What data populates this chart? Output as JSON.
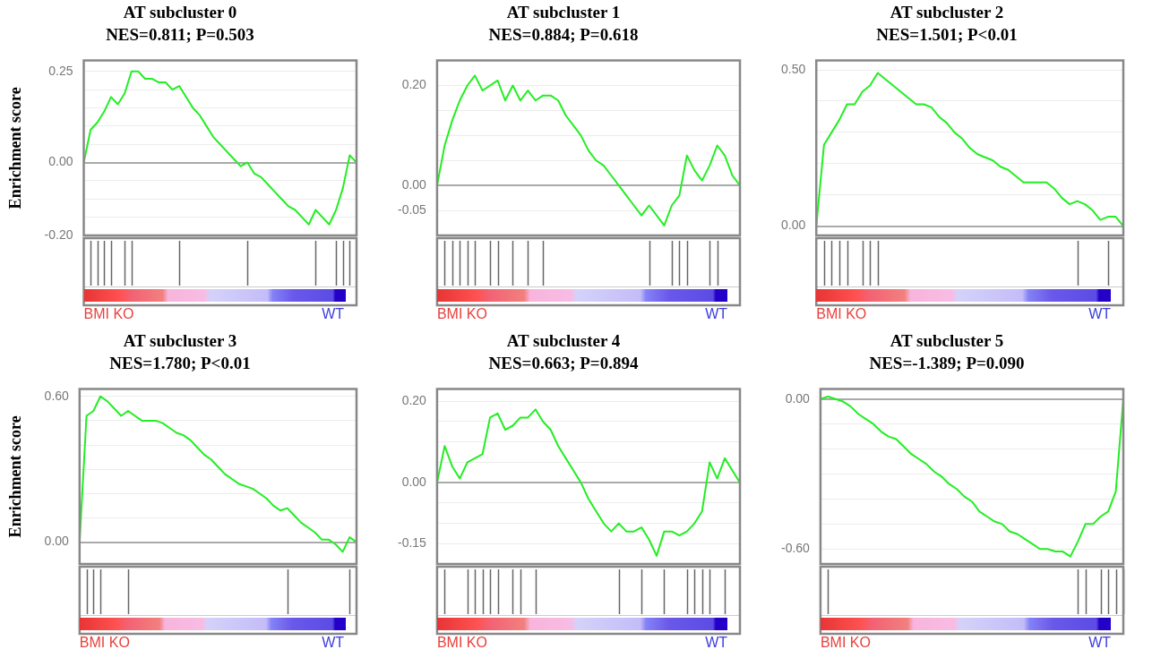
{
  "chart_data": [
    {
      "type": "line",
      "title": "AT subcluster 0",
      "subtitle": "NES=0.811; P=0.503",
      "ylabel": "Enrichment score",
      "grid": "y",
      "tick_labels": "y",
      "annotations": [
        "BMI KO",
        "WT"
      ],
      "ylim": [
        -0.2,
        0.28
      ],
      "yticks": [
        {
          "value": -0.2,
          "label": "-0.20"
        },
        {
          "value": -0.15,
          "label": null
        },
        {
          "value": -0.1,
          "label": null
        },
        {
          "value": -0.05,
          "label": null
        },
        {
          "value": 0,
          "label": "0.00"
        },
        {
          "value": 0.05,
          "label": null
        },
        {
          "value": 0.1,
          "label": null
        },
        {
          "value": 0.15,
          "label": null
        },
        {
          "value": 0.2,
          "label": null
        },
        {
          "value": 0.25,
          "label": "0.25"
        }
      ],
      "categories": [
        null,
        null,
        null,
        null,
        null,
        null,
        null,
        null,
        null,
        null,
        null,
        null,
        null,
        null,
        null,
        null,
        null,
        null,
        null,
        null,
        null,
        null,
        null,
        null,
        null,
        null,
        null,
        null,
        null,
        null,
        null,
        null,
        null,
        null,
        null,
        null,
        null,
        null,
        null,
        null,
        null
      ],
      "series": [
        {
          "color": "#22ee22",
          "values": [
            0,
            0.09,
            0.11,
            0.14,
            0.18,
            0.16,
            0.19,
            0.25,
            0.25,
            0.23,
            0.23,
            0.22,
            0.22,
            0.2,
            0.21,
            0.18,
            0.15,
            0.13,
            0.1,
            0.07,
            0.05,
            0.03,
            0.01,
            -0.01,
            0,
            -0.03,
            -0.04,
            -0.06,
            -0.08,
            -0.1,
            -0.12,
            -0.13,
            -0.15,
            -0.17,
            -0.13,
            -0.15,
            -0.17,
            -0.13,
            -0.07,
            0.02,
            0
          ]
        }
      ]
    },
    {
      "type": "line",
      "title": "AT subcluster 1",
      "subtitle": "NES=0.884; P=0.618",
      "grid": "y",
      "tick_labels": "y",
      "annotations": [
        "BMI KO",
        "WT"
      ],
      "ylim": [
        -0.1,
        0.25
      ],
      "yticks": [
        {
          "value": -0.1,
          "label": null
        },
        {
          "value": -0.05,
          "label": "-0.05"
        },
        {
          "value": 0,
          "label": "0.00"
        },
        {
          "value": 0.05,
          "label": null
        },
        {
          "value": 0.1,
          "label": null
        },
        {
          "value": 0.15,
          "label": null
        },
        {
          "value": 0.2,
          "label": "0.20"
        }
      ],
      "categories": [
        null,
        null,
        null,
        null,
        null,
        null,
        null,
        null,
        null,
        null,
        null,
        null,
        null,
        null,
        null,
        null,
        null,
        null,
        null,
        null,
        null,
        null,
        null,
        null,
        null,
        null,
        null,
        null,
        null,
        null,
        null,
        null,
        null,
        null,
        null,
        null,
        null,
        null,
        null,
        null,
        null
      ],
      "series": [
        {
          "color": "#22ee22",
          "values": [
            0,
            0.08,
            0.13,
            0.17,
            0.2,
            0.22,
            0.19,
            0.2,
            0.21,
            0.17,
            0.2,
            0.17,
            0.19,
            0.17,
            0.18,
            0.18,
            0.17,
            0.14,
            0.12,
            0.1,
            0.07,
            0.05,
            0.04,
            0.02,
            0,
            -0.02,
            -0.04,
            -0.06,
            -0.04,
            -0.06,
            -0.08,
            -0.04,
            -0.02,
            0.06,
            0.03,
            0.01,
            0.04,
            0.08,
            0.06,
            0.02,
            0
          ]
        }
      ]
    },
    {
      "type": "line",
      "title": "AT subcluster 2",
      "subtitle": "NES=1.501; P<0.01",
      "grid": "y",
      "tick_labels": "y",
      "annotations": [
        "BMI KO",
        "WT"
      ],
      "ylim": [
        -0.03,
        0.53
      ],
      "yticks": [
        {
          "value": 0,
          "label": "0.00"
        },
        {
          "value": 0.1,
          "label": null
        },
        {
          "value": 0.2,
          "label": null
        },
        {
          "value": 0.3,
          "label": null
        },
        {
          "value": 0.4,
          "label": null
        },
        {
          "value": 0.5,
          "label": "0.50"
        }
      ],
      "categories": [
        null,
        null,
        null,
        null,
        null,
        null,
        null,
        null,
        null,
        null,
        null,
        null,
        null,
        null,
        null,
        null,
        null,
        null,
        null,
        null,
        null,
        null,
        null,
        null,
        null,
        null,
        null,
        null,
        null,
        null,
        null,
        null,
        null,
        null,
        null,
        null,
        null,
        null,
        null,
        null,
        null
      ],
      "series": [
        {
          "color": "#22ee22",
          "values": [
            0,
            0.26,
            0.3,
            0.34,
            0.39,
            0.39,
            0.43,
            0.45,
            0.49,
            0.47,
            0.45,
            0.43,
            0.41,
            0.39,
            0.39,
            0.38,
            0.35,
            0.33,
            0.3,
            0.28,
            0.25,
            0.23,
            0.22,
            0.21,
            0.19,
            0.18,
            0.16,
            0.14,
            0.14,
            0.14,
            0.14,
            0.12,
            0.09,
            0.07,
            0.08,
            0.07,
            0.05,
            0.02,
            0.03,
            0.03,
            0
          ]
        }
      ]
    },
    {
      "type": "line",
      "title": "AT subcluster 3",
      "subtitle": "NES=1.780; P<0.01",
      "ylabel": "Enrichment score",
      "grid": "y",
      "tick_labels": "y",
      "annotations": [
        "BMI KO",
        "WT"
      ],
      "ylim": [
        -0.09,
        0.63
      ],
      "yticks": [
        {
          "value": 0,
          "label": "0.00"
        },
        {
          "value": 0.1,
          "label": null
        },
        {
          "value": 0.2,
          "label": null
        },
        {
          "value": 0.3,
          "label": null
        },
        {
          "value": 0.4,
          "label": null
        },
        {
          "value": 0.5,
          "label": null
        },
        {
          "value": 0.6,
          "label": "0.60"
        }
      ],
      "categories": [
        null,
        null,
        null,
        null,
        null,
        null,
        null,
        null,
        null,
        null,
        null,
        null,
        null,
        null,
        null,
        null,
        null,
        null,
        null,
        null,
        null,
        null,
        null,
        null,
        null,
        null,
        null,
        null,
        null,
        null,
        null,
        null,
        null,
        null,
        null,
        null,
        null,
        null,
        null,
        null,
        null
      ],
      "series": [
        {
          "color": "#22ee22",
          "values": [
            0,
            0.52,
            0.54,
            0.6,
            0.58,
            0.55,
            0.52,
            0.54,
            0.52,
            0.5,
            0.5,
            0.5,
            0.49,
            0.47,
            0.45,
            0.44,
            0.42,
            0.39,
            0.36,
            0.34,
            0.31,
            0.28,
            0.26,
            0.24,
            0.23,
            0.22,
            0.2,
            0.18,
            0.15,
            0.13,
            0.14,
            0.11,
            0.08,
            0.06,
            0.04,
            0.01,
            0.01,
            -0.01,
            -0.04,
            0.02,
            0
          ]
        }
      ]
    },
    {
      "type": "line",
      "title": "AT subcluster 4",
      "subtitle": "NES=0.663; P=0.894",
      "grid": "y",
      "tick_labels": "y",
      "annotations": [
        "BMI KO",
        "WT"
      ],
      "ylim": [
        -0.2,
        0.23
      ],
      "yticks": [
        {
          "value": -0.15,
          "label": "-0.15"
        },
        {
          "value": -0.1,
          "label": null
        },
        {
          "value": -0.05,
          "label": null
        },
        {
          "value": 0,
          "label": "0.00"
        },
        {
          "value": 0.05,
          "label": null
        },
        {
          "value": 0.1,
          "label": null
        },
        {
          "value": 0.15,
          "label": null
        },
        {
          "value": 0.2,
          "label": "0.20"
        }
      ],
      "categories": [
        null,
        null,
        null,
        null,
        null,
        null,
        null,
        null,
        null,
        null,
        null,
        null,
        null,
        null,
        null,
        null,
        null,
        null,
        null,
        null,
        null,
        null,
        null,
        null,
        null,
        null,
        null,
        null,
        null,
        null,
        null,
        null,
        null,
        null,
        null,
        null,
        null,
        null,
        null,
        null,
        null
      ],
      "series": [
        {
          "color": "#22ee22",
          "values": [
            0,
            0.09,
            0.04,
            0.01,
            0.05,
            0.06,
            0.07,
            0.16,
            0.17,
            0.13,
            0.14,
            0.16,
            0.16,
            0.18,
            0.15,
            0.13,
            0.09,
            0.06,
            0.03,
            0,
            -0.04,
            -0.07,
            -0.1,
            -0.12,
            -0.1,
            -0.12,
            -0.12,
            -0.11,
            -0.14,
            -0.18,
            -0.12,
            -0.12,
            -0.13,
            -0.12,
            -0.1,
            -0.07,
            0.05,
            0.01,
            0.06,
            0.03,
            0
          ]
        }
      ]
    },
    {
      "type": "line",
      "title": "AT subcluster 5",
      "subtitle": "NES=-1.389; P=0.090",
      "grid": "y",
      "tick_labels": "y",
      "annotations": [
        "BMI KO",
        "WT"
      ],
      "ylim": [
        -0.66,
        0.04
      ],
      "yticks": [
        {
          "value": -0.6,
          "label": "-0.60"
        },
        {
          "value": -0.5,
          "label": null
        },
        {
          "value": -0.4,
          "label": null
        },
        {
          "value": -0.3,
          "label": null
        },
        {
          "value": -0.2,
          "label": null
        },
        {
          "value": -0.1,
          "label": null
        },
        {
          "value": 0,
          "label": "0.00"
        }
      ],
      "categories": [
        null,
        null,
        null,
        null,
        null,
        null,
        null,
        null,
        null,
        null,
        null,
        null,
        null,
        null,
        null,
        null,
        null,
        null,
        null,
        null,
        null,
        null,
        null,
        null,
        null,
        null,
        null,
        null,
        null,
        null,
        null,
        null,
        null,
        null,
        null,
        null,
        null,
        null,
        null,
        null,
        null
      ],
      "series": [
        {
          "color": "#22ee22",
          "values": [
            0,
            0.01,
            0,
            -0.01,
            -0.03,
            -0.06,
            -0.08,
            -0.1,
            -0.13,
            -0.15,
            -0.16,
            -0.19,
            -0.22,
            -0.24,
            -0.26,
            -0.29,
            -0.31,
            -0.34,
            -0.36,
            -0.39,
            -0.41,
            -0.45,
            -0.47,
            -0.49,
            -0.5,
            -0.53,
            -0.54,
            -0.56,
            -0.58,
            -0.6,
            -0.6,
            -0.61,
            -0.61,
            -0.63,
            -0.57,
            -0.5,
            -0.5,
            -0.47,
            -0.45,
            -0.37,
            0
          ]
        }
      ]
    }
  ]
}
